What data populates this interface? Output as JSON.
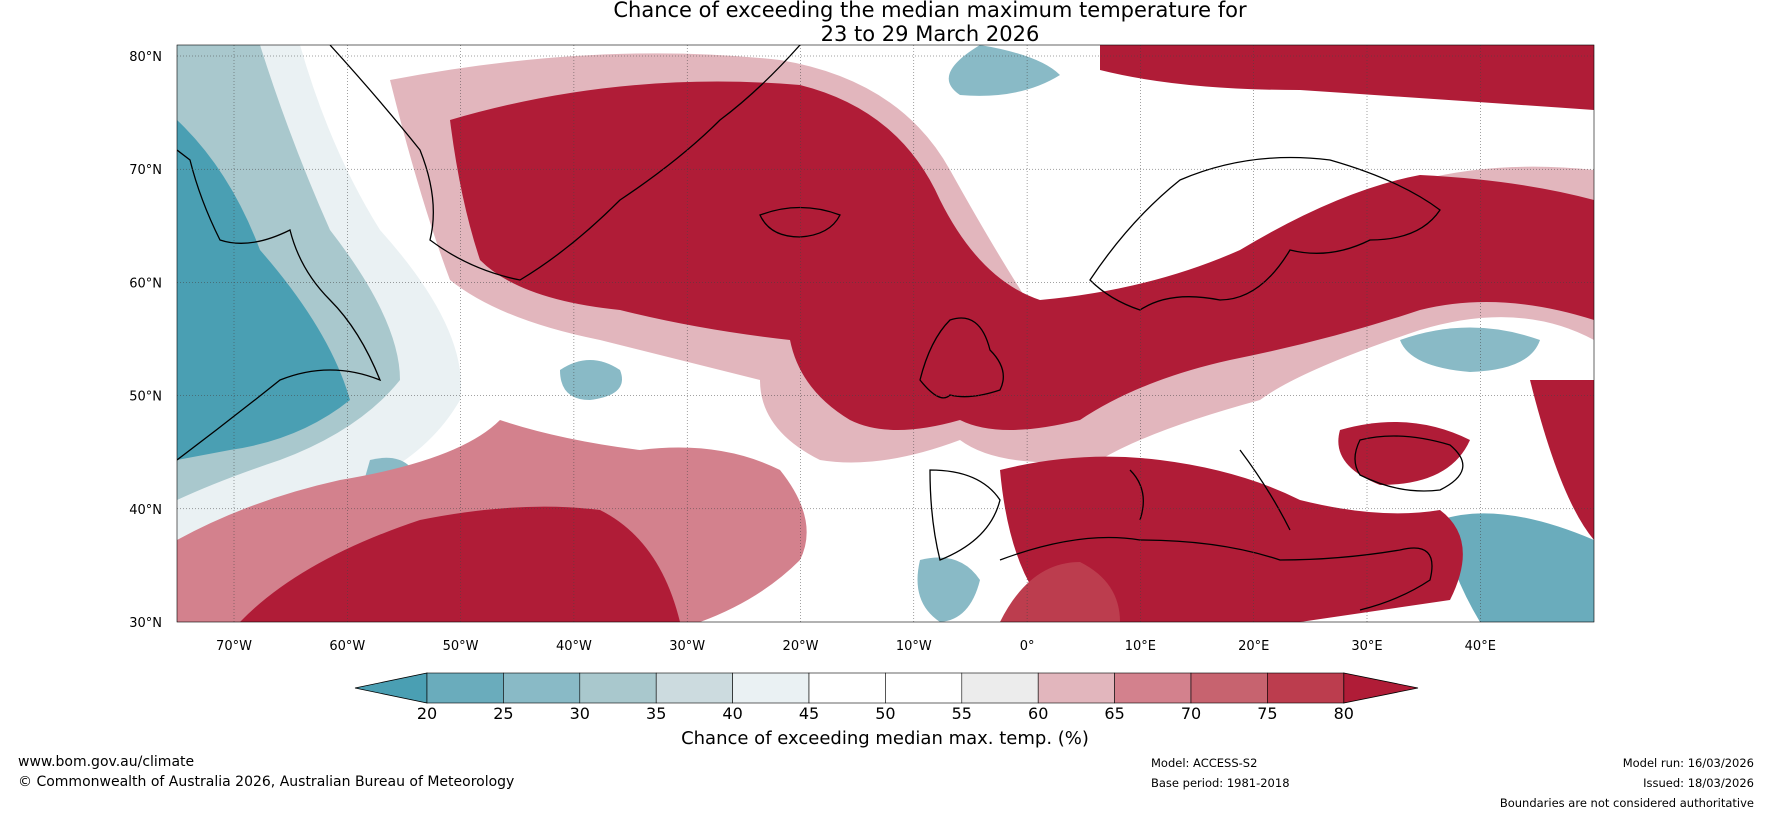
{
  "title": {
    "line1": "Chance of exceeding the median maximum temperature for",
    "line2": "23 to 29 March 2026"
  },
  "latitudes": [
    "80°N",
    "70°N",
    "60°N",
    "50°N",
    "40°N",
    "30°N"
  ],
  "longitudes": [
    "70°W",
    "60°W",
    "50°W",
    "40°W",
    "30°W",
    "20°W",
    "10°W",
    "0°",
    "10°E",
    "20°E",
    "30°E",
    "40°E"
  ],
  "colorbar": {
    "ticks": [
      "20",
      "25",
      "30",
      "35",
      "40",
      "45",
      "50",
      "55",
      "60",
      "65",
      "70",
      "75",
      "80"
    ],
    "colors": [
      "#4a9fb3",
      "#6aacbc",
      "#89bac6",
      "#a9c8cd",
      "#ccdbdf",
      "#eaf1f3",
      "#ffffff",
      "#ffffff",
      "#ececec",
      "#e2b6bd",
      "#d3818d",
      "#c7636f",
      "#bc3d4e",
      "#b01c37"
    ],
    "label": "Chance of exceeding median max. temp. (%)"
  },
  "footer": {
    "website": "www.bom.gov.au/climate",
    "copyright": "© Commonwealth of Australia 2026, Australian Bureau of Meteorology",
    "model": "Model: ACCESS-S2",
    "base_period": "Base period: 1981-2018",
    "model_run": "Model run: 16/03/2026",
    "issued": "Issued: 18/03/2026",
    "disclaimer": "Boundaries are not considered authoritative"
  }
}
